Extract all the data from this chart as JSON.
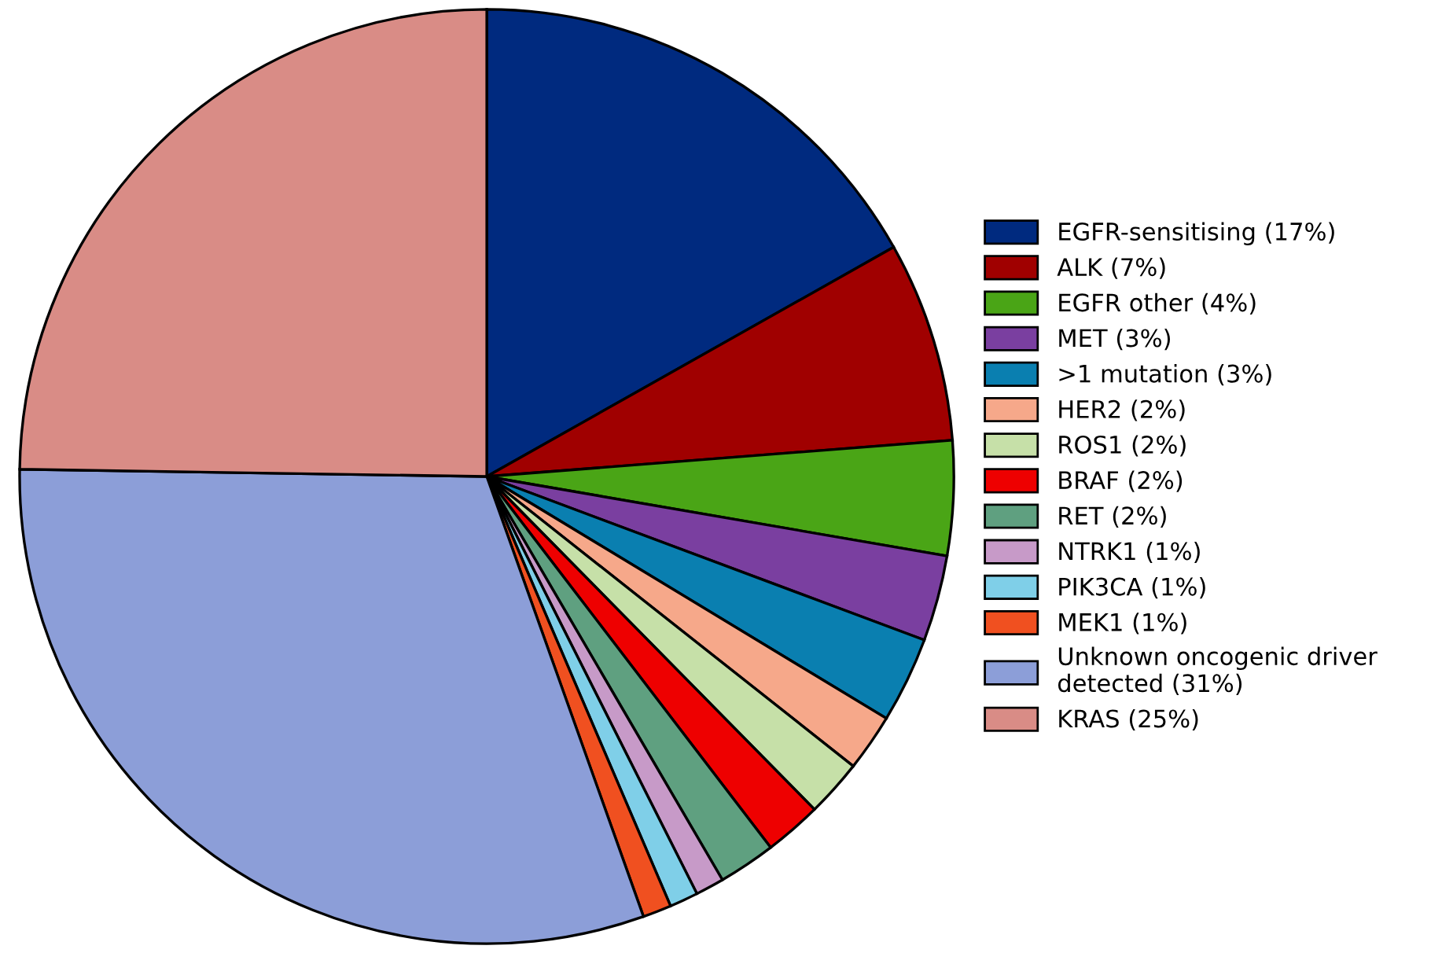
{
  "chart_data": {
    "type": "pie",
    "categories": [
      "EGFR-sensitising (17%)",
      "ALK (7%)",
      "EGFR other (4%)",
      "MET (3%)",
      ">1 mutation (3%)",
      "HER2 (2%)",
      "ROS1 (2%)",
      "BRAF (2%)",
      "RET (2%)",
      "NTRK1 (1%)",
      "PIK3CA (1%)",
      "MEK1 (1%)",
      "Unknown oncogenic driver detected (31%)",
      "KRAS (25%)"
    ],
    "values": [
      17,
      7,
      4,
      3,
      3,
      2,
      2,
      2,
      2,
      1,
      1,
      1,
      31,
      25
    ],
    "colors": [
      "#002a7f",
      "#a00000",
      "#4aa516",
      "#7a3fa0",
      "#0a7fb0",
      "#f6a88a",
      "#c6e0a8",
      "#ee0000",
      "#5fa080",
      "#c79ac8",
      "#7fcfe8",
      "#f05020",
      "#8c9ed8",
      "#d98c86"
    ],
    "legend": "right"
  }
}
